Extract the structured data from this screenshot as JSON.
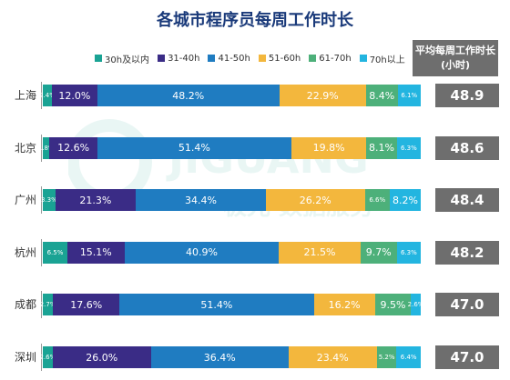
{
  "chart_data": {
    "type": "bar",
    "orientation": "horizontal",
    "stacked": true,
    "title": "各城市程序员每周工作时长",
    "categories": [
      "上海",
      "北京",
      "广州",
      "杭州",
      "成都",
      "深圳"
    ],
    "series": [
      {
        "name": "30h及以内",
        "color": "#1aa394",
        "values": [
          2.4,
          1.8,
          3.3,
          6.5,
          2.7,
          2.6
        ],
        "labels": [
          "2.4%",
          "1.8%",
          "3.3%",
          "6.5%",
          "2.7%",
          "2.6%"
        ]
      },
      {
        "name": "31-40h",
        "color": "#3a2c86",
        "values": [
          12.0,
          12.6,
          21.3,
          15.1,
          17.6,
          26.0
        ],
        "labels": [
          "12.0%",
          "12.6%",
          "21.3%",
          "15.1%",
          "17.6%",
          "26.0%"
        ]
      },
      {
        "name": "41-50h",
        "color": "#1f7cc1",
        "values": [
          48.2,
          51.4,
          34.4,
          40.9,
          51.4,
          36.4
        ],
        "labels": [
          "48.2%",
          "51.4%",
          "34.4%",
          "40.9%",
          "51.4%",
          "36.4%"
        ]
      },
      {
        "name": "51-60h",
        "color": "#f3b73d",
        "values": [
          22.9,
          19.8,
          26.2,
          21.5,
          16.2,
          23.4
        ],
        "labels": [
          "22.9%",
          "19.8%",
          "26.2%",
          "21.5%",
          "16.2%",
          "23.4%"
        ]
      },
      {
        "name": "61-70h",
        "color": "#4db07a",
        "values": [
          8.4,
          8.1,
          6.6,
          9.7,
          9.5,
          5.2
        ],
        "labels": [
          "8.4%",
          "8.1%",
          "6.6%",
          "9.7%",
          "9.5%",
          "5.2%"
        ]
      },
      {
        "name": "70h以上",
        "color": "#23b5e0",
        "values": [
          6.1,
          6.3,
          8.2,
          6.3,
          2.6,
          6.4
        ],
        "labels": [
          "6.1%",
          "6.3%",
          "8.2%",
          "6.3%",
          "2.6%",
          "6.4%"
        ]
      }
    ],
    "average_header": "平均每周工作时长(小时)",
    "averages": [
      "48.9",
      "48.6",
      "48.4",
      "48.2",
      "47.0",
      "47.0"
    ],
    "legend_position": "top",
    "grid": false
  },
  "watermark": {
    "brand": "JIGUANG",
    "sub": "极光 数据服务"
  }
}
